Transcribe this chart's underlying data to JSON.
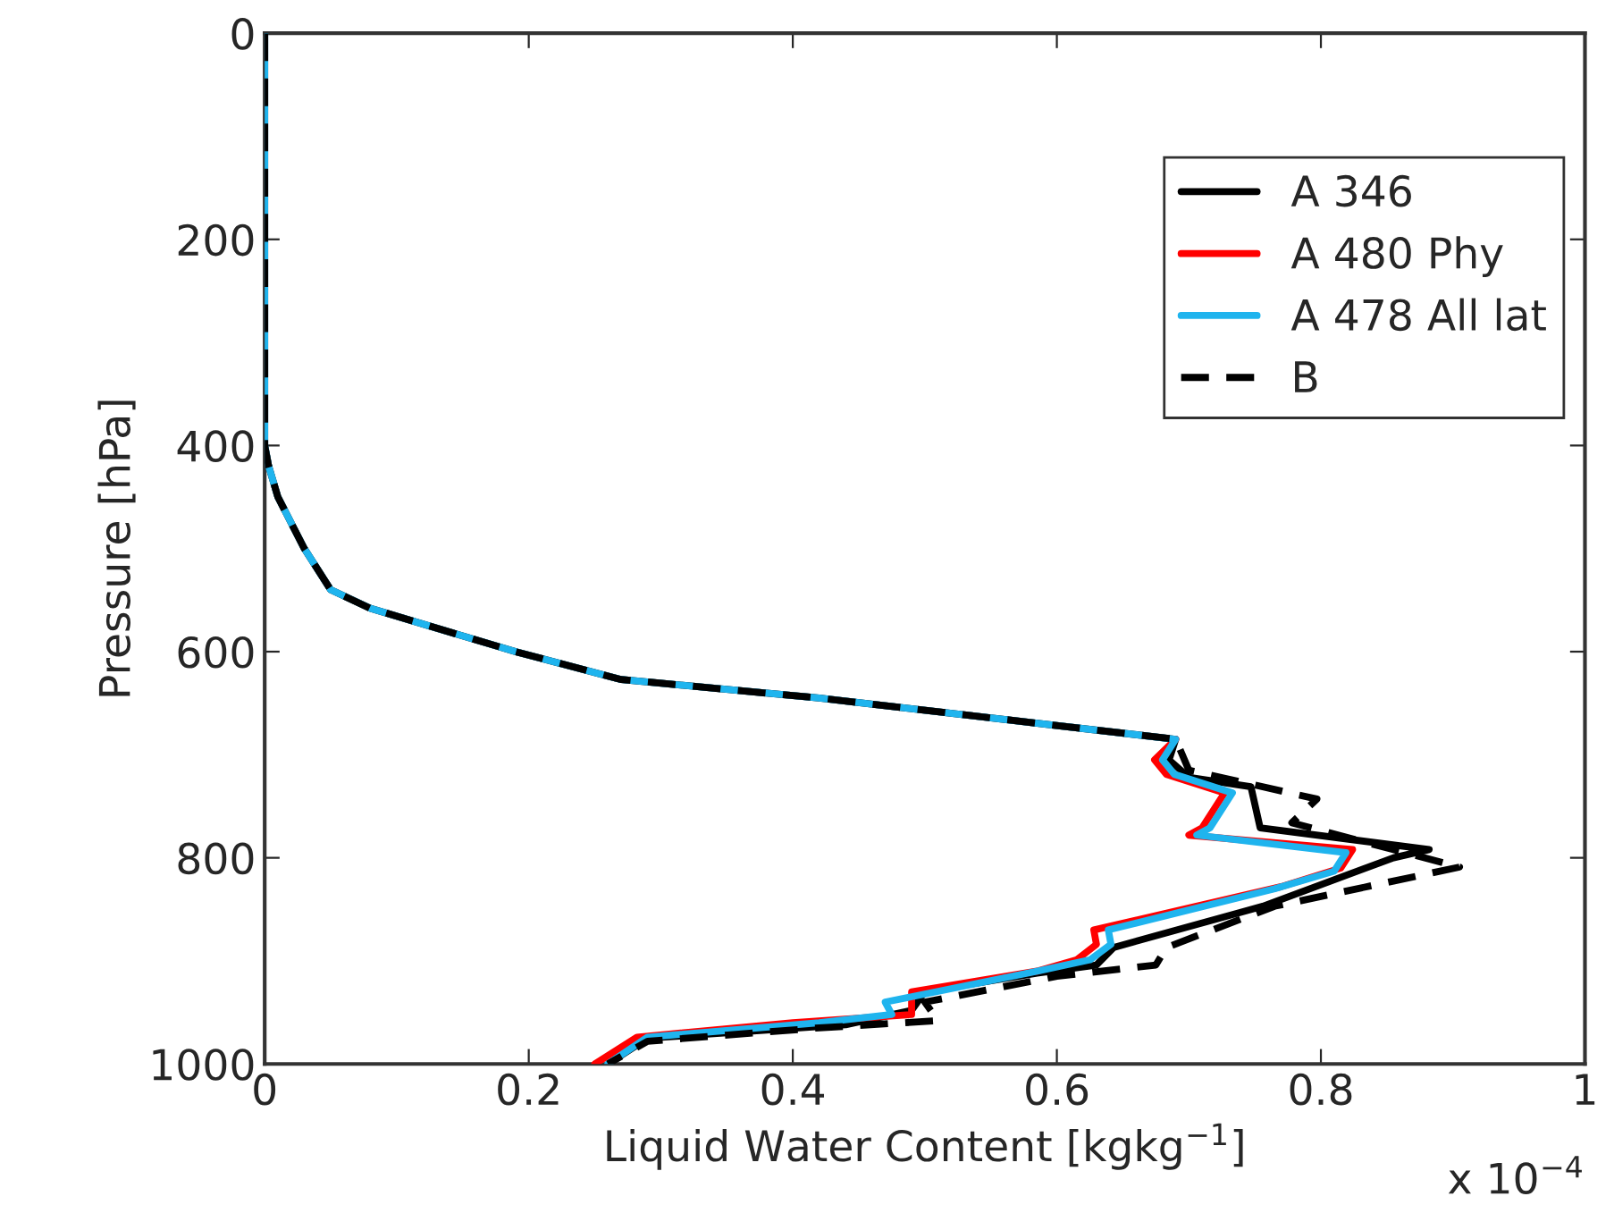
{
  "chart_data": {
    "type": "line",
    "xlabel": "Liquid Water Content [kgkg$^{−1}$]",
    "ylabel": "Pressure [hPa]",
    "annotations": [
      "x 10$^{−4}$"
    ],
    "xlim": [
      0,
      1
    ],
    "xticks": [
      0,
      0.2,
      0.4,
      0.6,
      0.8,
      1
    ],
    "ylim": [
      1000,
      0
    ],
    "yticks": [
      0,
      200,
      400,
      600,
      800,
      1000
    ],
    "grid": false,
    "legend": "top right",
    "series": [
      {
        "name": "A 346",
        "color": "#000000",
        "line_style": "solid",
        "x": [
          0,
          0,
          0.003,
          0.01,
          0.03,
          0.05,
          0.08,
          0.19,
          0.27,
          0.42,
          0.69,
          0.685,
          0.7,
          0.747,
          0.754,
          0.882,
          0.855,
          0.756,
          0.643,
          0.63,
          0.585,
          0.5,
          0.49,
          0.44,
          0.29,
          0.26
        ],
        "values": [
          0,
          400,
          420,
          450,
          500,
          540,
          558,
          600,
          627,
          645,
          685,
          705,
          722,
          731,
          771,
          792,
          800,
          847,
          887,
          904,
          912,
          930,
          948,
          962,
          975,
          1000
        ]
      },
      {
        "name": "A 480 Phy",
        "color": "#ff0000",
        "line_style": "solid",
        "x": [
          null,
          null,
          null,
          null,
          null,
          null,
          null,
          null,
          null,
          null,
          0.69,
          0.674,
          0.683,
          0.727,
          0.71,
          0.7,
          0.824,
          0.815,
          0.77,
          0.628,
          0.63,
          0.615,
          0.585,
          0.49,
          0.49,
          0.4,
          0.282,
          0.25
        ],
        "values": [
          null,
          null,
          null,
          null,
          null,
          null,
          null,
          null,
          null,
          null,
          685,
          705,
          719,
          737,
          771,
          778,
          792,
          810,
          828,
          870,
          884,
          899,
          910,
          930,
          952,
          960,
          974,
          1000
        ]
      },
      {
        "name": "A 478 All lat",
        "color": "#1fb4ee",
        "line_style": "solid",
        "x": [
          0,
          0,
          0.003,
          0.01,
          0.03,
          0.05,
          0.08,
          0.19,
          0.27,
          0.42,
          0.69,
          0.68,
          0.689,
          0.733,
          0.716,
          0.706,
          0.819,
          0.81,
          0.765,
          0.639,
          0.641,
          0.625,
          0.585,
          0.47,
          0.475,
          0.42,
          0.29,
          0.26
        ],
        "values": [
          0,
          400,
          420,
          450,
          500,
          540,
          558,
          600,
          627,
          645,
          685,
          705,
          719,
          737,
          771,
          778,
          795,
          813,
          830,
          870,
          884,
          899,
          910,
          940,
          952,
          960,
          974,
          1000
        ]
      },
      {
        "name": "B",
        "color": "#000000",
        "line_style": "dashed",
        "x": [
          0,
          0,
          0.003,
          0.01,
          0.03,
          0.05,
          0.08,
          0.19,
          0.27,
          0.42,
          0.69,
          0.7,
          0.797,
          0.778,
          0.905,
          0.765,
          0.683,
          0.675,
          0.6,
          0.5,
          0.51,
          0.42,
          0.29,
          0.26
        ],
        "values": [
          0,
          400,
          420,
          450,
          500,
          540,
          558,
          600,
          627,
          645,
          685,
          715,
          743,
          766,
          809,
          847,
          887,
          904,
          915,
          940,
          958,
          965,
          978,
          1000
        ]
      }
    ]
  }
}
